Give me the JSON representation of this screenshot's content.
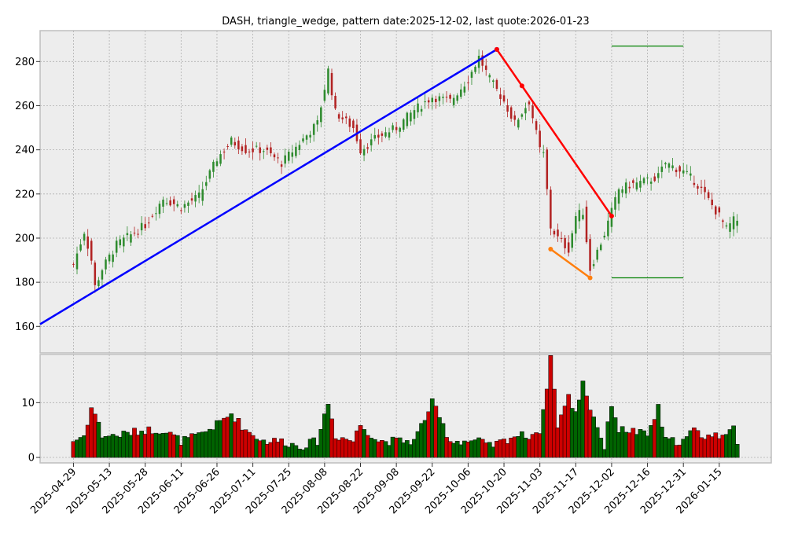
{
  "chart_data": {
    "type": "candlestick",
    "title": "DASH, triangle_wedge, pattern date:2025-12-02, last quote:2026-01-23",
    "price_axis": {
      "ylim": [
        148,
        294
      ],
      "ticks": [
        160,
        180,
        200,
        220,
        240,
        260,
        280
      ]
    },
    "volume_axis": {
      "ylim": [
        -1,
        18.8
      ],
      "ticks": [
        0,
        10
      ]
    },
    "x_axis": {
      "ticks": [
        "2025-04-29",
        "2025-05-13",
        "2025-05-28",
        "2025-06-11",
        "2025-06-26",
        "2025-07-11",
        "2025-07-25",
        "2025-08-08",
        "2025-08-22",
        "2025-09-08",
        "2025-09-22",
        "2025-10-06",
        "2025-10-20",
        "2025-11-03",
        "2025-11-17",
        "2025-12-02",
        "2025-12-16",
        "2025-12-31",
        "2026-01-15"
      ],
      "tick_index": [
        0,
        10,
        20,
        30,
        40,
        50,
        60,
        70,
        80,
        90,
        100,
        110,
        120,
        130,
        140,
        150,
        160,
        170,
        180
      ],
      "index_range": [
        -9.3,
        194.5
      ]
    },
    "grid": true,
    "colors": {
      "up": "#2e8b2e",
      "down": "#b22222",
      "vol_up": "#006400",
      "vol_down": "#cc0000",
      "support_resistance": "#008000",
      "blue_line": "#0000ff",
      "red_line": "#ff0000",
      "orange_line": "#ff7f0e"
    },
    "overlays": {
      "blue_line": [
        [
          -9.3,
          161
        ],
        [
          118,
          285.5
        ]
      ],
      "red_line": [
        [
          118,
          285.5
        ],
        [
          125,
          269
        ],
        [
          150,
          210
        ]
      ],
      "orange_line": [
        [
          133,
          195
        ],
        [
          144,
          182
        ]
      ],
      "resistance": {
        "y": 287,
        "x": [
          150,
          170
        ]
      },
      "support": {
        "y": 182,
        "x": [
          150,
          170
        ]
      }
    },
    "anchors": [
      {
        "i": 0,
        "c": 188,
        "v": 3
      },
      {
        "i": 3,
        "c": 203,
        "v": 4
      },
      {
        "i": 5,
        "c": 190,
        "v": 9
      },
      {
        "i": 6,
        "c": 178,
        "v": 8
      },
      {
        "i": 8,
        "c": 186,
        "v": 4
      },
      {
        "i": 12,
        "c": 197,
        "v": 4
      },
      {
        "i": 20,
        "c": 206,
        "v": 5
      },
      {
        "i": 25,
        "c": 218,
        "v": 5
      },
      {
        "i": 30,
        "c": 214,
        "v": 3
      },
      {
        "i": 35,
        "c": 219,
        "v": 4
      },
      {
        "i": 40,
        "c": 236,
        "v": 6
      },
      {
        "i": 44,
        "c": 244,
        "v": 8
      },
      {
        "i": 48,
        "c": 240,
        "v": 5
      },
      {
        "i": 53,
        "c": 240,
        "v": 3
      },
      {
        "i": 58,
        "c": 234,
        "v": 3
      },
      {
        "i": 63,
        "c": 243,
        "v": 2
      },
      {
        "i": 68,
        "c": 252,
        "v": 3
      },
      {
        "i": 71,
        "c": 276,
        "v": 10
      },
      {
        "i": 73,
        "c": 257,
        "v": 4
      },
      {
        "i": 78,
        "c": 250,
        "v": 3
      },
      {
        "i": 80,
        "c": 240,
        "v": 6
      },
      {
        "i": 85,
        "c": 246,
        "v": 3
      },
      {
        "i": 90,
        "c": 250,
        "v": 3
      },
      {
        "i": 95,
        "c": 258,
        "v": 3
      },
      {
        "i": 100,
        "c": 264,
        "v": 10
      },
      {
        "i": 105,
        "c": 262,
        "v": 3
      },
      {
        "i": 110,
        "c": 272,
        "v": 3
      },
      {
        "i": 113,
        "c": 282,
        "v": 3
      },
      {
        "i": 116,
        "c": 272,
        "v": 2
      },
      {
        "i": 120,
        "c": 262,
        "v": 3
      },
      {
        "i": 123,
        "c": 252,
        "v": 4
      },
      {
        "i": 127,
        "c": 262,
        "v": 4
      },
      {
        "i": 130,
        "c": 240,
        "v": 5
      },
      {
        "i": 131,
        "c": 238,
        "v": 8
      },
      {
        "i": 133,
        "c": 205,
        "v": 18.5
      },
      {
        "i": 135,
        "c": 200,
        "v": 6
      },
      {
        "i": 138,
        "c": 195,
        "v": 11
      },
      {
        "i": 140,
        "c": 210,
        "v": 8
      },
      {
        "i": 142,
        "c": 212,
        "v": 14
      },
      {
        "i": 144,
        "c": 186,
        "v": 9
      },
      {
        "i": 147,
        "c": 198,
        "v": 4
      },
      {
        "i": 148,
        "c": 202,
        "v": 1.5
      },
      {
        "i": 150,
        "c": 212,
        "v": 10
      },
      {
        "i": 152,
        "c": 222,
        "v": 5
      },
      {
        "i": 155,
        "c": 224,
        "v": 5
      },
      {
        "i": 160,
        "c": 226,
        "v": 4
      },
      {
        "i": 163,
        "c": 228,
        "v": 9
      },
      {
        "i": 165,
        "c": 234,
        "v": 3
      },
      {
        "i": 170,
        "c": 230,
        "v": 3
      },
      {
        "i": 173,
        "c": 226,
        "v": 5
      },
      {
        "i": 175,
        "c": 222,
        "v": 4
      },
      {
        "i": 180,
        "c": 210,
        "v": 4
      },
      {
        "i": 182,
        "c": 204,
        "v": 5
      },
      {
        "i": 184,
        "c": 208,
        "v": 5
      },
      {
        "i": 185,
        "c": 208,
        "v": 2
      }
    ]
  }
}
